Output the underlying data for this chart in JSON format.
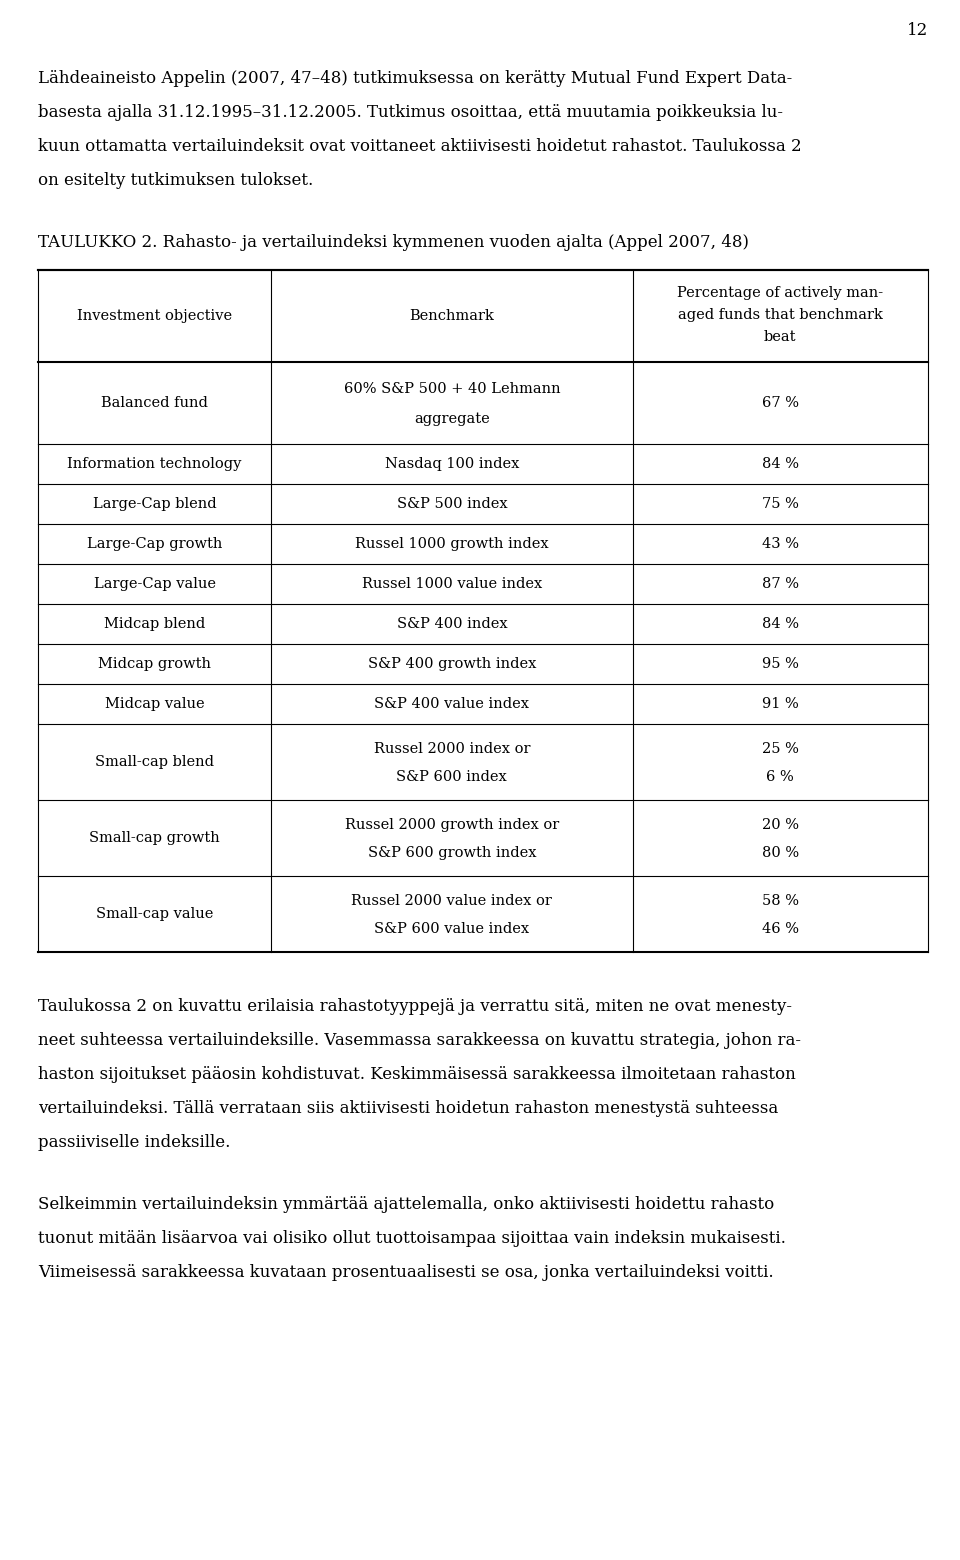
{
  "page_number": "12",
  "col_headers": [
    "Investment objective",
    "Benchmark",
    "Percentage of actively man-\naged funds that benchmark\nbeat"
  ],
  "rows": [
    [
      "Balanced fund",
      "60% S&P 500 + 40 Lehmann\naggregate",
      "67 %"
    ],
    [
      "Information technology",
      "Nasdaq 100 index",
      "84 %"
    ],
    [
      "Large-Cap blend",
      "S&P 500 index",
      "75 %"
    ],
    [
      "Large-Cap growth",
      "Russel 1000 growth index",
      "43 %"
    ],
    [
      "Large-Cap value",
      "Russel 1000 value index",
      "87 %"
    ],
    [
      "Midcap blend",
      "S&P 400 index",
      "84 %"
    ],
    [
      "Midcap growth",
      "S&P 400 growth index",
      "95 %"
    ],
    [
      "Midcap value",
      "S&P 400 value index",
      "91 %"
    ],
    [
      "Small-cap blend",
      "Russel 2000 index or\nS&P 600 index",
      "25 %\n6 %"
    ],
    [
      "Small-cap growth",
      "Russel 2000 growth index or\nS&P 600 growth index",
      "20 %\n80 %"
    ],
    [
      "Small-cap value",
      "Russel 2000 value index or\nS&P 600 value index",
      "58 %\n46 %"
    ]
  ],
  "bg_color": "#ffffff",
  "text_color": "#000000"
}
